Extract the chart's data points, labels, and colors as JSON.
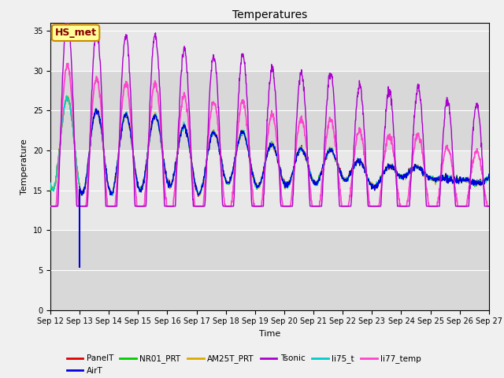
{
  "title": "Temperatures",
  "xlabel": "Time",
  "ylabel": "Temperature",
  "xlim": [
    0,
    360
  ],
  "ylim": [
    0,
    36
  ],
  "yticks": [
    0,
    5,
    10,
    15,
    20,
    25,
    30,
    35
  ],
  "xtick_labels": [
    "Sep 12",
    "Sep 13",
    "Sep 14",
    "Sep 15",
    "Sep 16",
    "Sep 17",
    "Sep 18",
    "Sep 19",
    "Sep 20",
    "Sep 21",
    "Sep 22",
    "Sep 23",
    "Sep 24",
    "Sep 25",
    "Sep 26",
    "Sep 27"
  ],
  "xtick_positions": [
    0,
    24,
    48,
    72,
    96,
    120,
    144,
    168,
    192,
    216,
    240,
    264,
    288,
    312,
    336,
    360
  ],
  "colors": {
    "PanelT": "#dd0000",
    "AirT": "#0000dd",
    "NR01_PRT": "#00cc00",
    "AM25T_PRT": "#ddaa00",
    "Tsonic": "#aa00cc",
    "li75_t": "#00cccc",
    "li77_temp": "#ff44cc"
  },
  "bg_bands": [
    [
      0,
      10,
      "#d8d8d8"
    ],
    [
      10,
      20,
      "#e8e8e8"
    ],
    [
      20,
      30,
      "#d8d8d8"
    ],
    [
      30,
      36,
      "#e8e8e8"
    ]
  ],
  "annotation_box": {
    "text": "HS_met",
    "facecolor": "#ffff99",
    "edgecolor": "#cc8800",
    "fontsize": 9,
    "text_color": "#880000"
  },
  "vertical_line_x": 24,
  "vertical_line_ymin": 5.3,
  "vertical_line_ymax": 15.2,
  "seed": 12345
}
